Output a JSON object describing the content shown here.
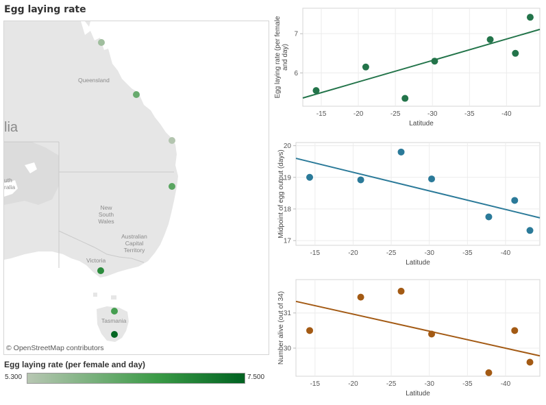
{
  "page": {
    "title": "Egg laying rate"
  },
  "map": {
    "attribution": "© OpenStreetMap contributors",
    "region_labels": [
      "Queensland",
      "lia",
      "uth",
      "ralia",
      "New South Wales",
      "Australian Capital Territory",
      "Victoria",
      "Tasmania"
    ],
    "legend": {
      "title": "Egg laying rate (per female and day)",
      "min_label": "5.300",
      "max_label": "7.500",
      "min_value": 5.3,
      "max_value": 7.5,
      "color_low": "#b8c7b3",
      "color_high": "#006221"
    },
    "sites": [
      {
        "latitude": -14.3,
        "egg_laying_rate": 5.55
      },
      {
        "latitude": -21.0,
        "egg_laying_rate": 6.15
      },
      {
        "latitude": -26.3,
        "egg_laying_rate": 5.35
      },
      {
        "latitude": -30.3,
        "egg_laying_rate": 6.3
      },
      {
        "latitude": -37.8,
        "egg_laying_rate": 6.85
      },
      {
        "latitude": -41.2,
        "egg_laying_rate": 6.5
      },
      {
        "latitude": -43.2,
        "egg_laying_rate": 7.42
      }
    ]
  },
  "chart_data": [
    {
      "type": "scatter",
      "xlabel": "Latitude",
      "ylabel": "Egg laying rate (per female and day)",
      "x_reversed": true,
      "xlim": [
        -12.5,
        -44.5
      ],
      "ylim": [
        5.15,
        7.65
      ],
      "x_ticks": [
        -15,
        -20,
        -25,
        -30,
        -35,
        -40
      ],
      "y_ticks": [
        6,
        7
      ],
      "color": "#23744a",
      "points": [
        {
          "x": -14.3,
          "y": 5.55
        },
        {
          "x": -21.0,
          "y": 6.15
        },
        {
          "x": -26.3,
          "y": 5.35
        },
        {
          "x": -30.3,
          "y": 6.3
        },
        {
          "x": -37.8,
          "y": 6.85
        },
        {
          "x": -41.2,
          "y": 6.5
        },
        {
          "x": -43.2,
          "y": 7.42
        }
      ],
      "trend_line": {
        "x": [
          -12.5,
          -44.5
        ],
        "y": [
          5.36,
          7.11
        ]
      },
      "grid": true
    },
    {
      "type": "scatter",
      "xlabel": "Latitude",
      "ylabel": "Midpoint of egg output (days)",
      "x_reversed": true,
      "xlim": [
        -12.5,
        -44.5
      ],
      "ylim": [
        16.85,
        20.1
      ],
      "x_ticks": [
        -15,
        -20,
        -25,
        -30,
        -35,
        -40
      ],
      "y_ticks": [
        17,
        18,
        19,
        20
      ],
      "color": "#2b7a99",
      "points": [
        {
          "x": -14.3,
          "y": 19.0
        },
        {
          "x": -21.0,
          "y": 18.92
        },
        {
          "x": -26.3,
          "y": 19.8
        },
        {
          "x": -30.3,
          "y": 18.95
        },
        {
          "x": -37.8,
          "y": 17.75
        },
        {
          "x": -41.2,
          "y": 18.27
        },
        {
          "x": -43.2,
          "y": 17.32
        }
      ],
      "trend_line": {
        "x": [
          -12.5,
          -44.5
        ],
        "y": [
          19.6,
          17.72
        ]
      },
      "grid": true
    },
    {
      "type": "scatter",
      "xlabel": "Latitude",
      "ylabel": "Number alive (out of 34)",
      "x_reversed": true,
      "xlim": [
        -12.5,
        -44.5
      ],
      "ylim": [
        29.2,
        31.95
      ],
      "x_ticks": [
        -15,
        -20,
        -25,
        -30,
        -35,
        -40
      ],
      "y_ticks": [
        30,
        31
      ],
      "color": "#a35a14",
      "points": [
        {
          "x": -14.3,
          "y": 30.5
        },
        {
          "x": -21.0,
          "y": 31.45
        },
        {
          "x": -26.3,
          "y": 31.62
        },
        {
          "x": -30.3,
          "y": 30.4
        },
        {
          "x": -37.8,
          "y": 29.3
        },
        {
          "x": -41.2,
          "y": 30.5
        },
        {
          "x": -43.2,
          "y": 29.6
        }
      ],
      "trend_line": {
        "x": [
          -12.5,
          -44.5
        ],
        "y": [
          31.33,
          29.78
        ]
      },
      "grid": true
    }
  ]
}
